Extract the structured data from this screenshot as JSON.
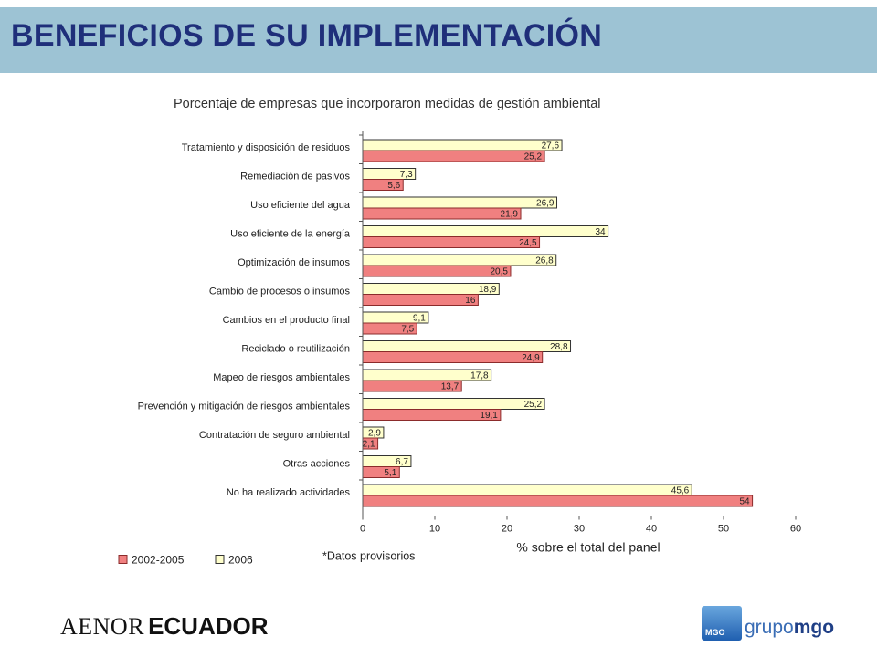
{
  "header": {
    "title": "BENEFICIOS DE SU IMPLEMENTACIÓN"
  },
  "chart_data": {
    "type": "bar",
    "orientation": "horizontal",
    "title": "Porcentaje de empresas que incorporaron medidas de gestión ambiental",
    "categories": [
      "Tratamiento y disposición de residuos",
      "Remediación de pasivos",
      "Uso eficiente del agua",
      "Uso eficiente de la energía",
      "Optimización de insumos",
      "Cambio de procesos o insumos",
      "Cambios en el producto final",
      "Reciclado o reutilización",
      "Mapeo de riesgos ambientales",
      "Prevención y mitigación de riesgos ambientales",
      "Contratación de seguro ambiental",
      "Otras acciones",
      "No ha realizado actividades"
    ],
    "series": [
      {
        "name": "2006",
        "color": "#ffffcc",
        "values": [
          27.6,
          7.3,
          26.9,
          34,
          26.8,
          18.9,
          9.1,
          28.8,
          17.8,
          25.2,
          2.9,
          6.7,
          45.6
        ],
        "labels": [
          "27,6",
          "7,3",
          "26,9",
          "34",
          "26,8",
          "18,9",
          "9,1",
          "28,8",
          "17,8",
          "25,2",
          "2,9",
          "6,7",
          "45,6"
        ]
      },
      {
        "name": "2002-2005",
        "color": "#f08080",
        "values": [
          25.2,
          5.6,
          21.9,
          24.5,
          20.5,
          16,
          7.5,
          24.9,
          13.7,
          19.1,
          2.1,
          5.1,
          54
        ],
        "labels": [
          "25,2",
          "5,6",
          "21,9",
          "24,5",
          "20,5",
          "16",
          "7,5",
          "24,9",
          "13,7",
          "19,1",
          "2,1",
          "5,1",
          "54"
        ]
      }
    ],
    "xlabel": "% sobre el total del panel",
    "xlim": [
      0,
      60
    ],
    "xticks": [
      0,
      10,
      20,
      30,
      40,
      50,
      60
    ],
    "legend": [
      "2002-2005",
      "2006"
    ],
    "legend_position": "bottom-left",
    "note": "*Datos provisorios",
    "grid": false
  },
  "footer": {
    "aenor_left": "AENOR",
    "aenor_right": "ECUADOR",
    "mgo_box": "MGO",
    "mgo_text_1": "grupo",
    "mgo_text_2": "mgo"
  }
}
